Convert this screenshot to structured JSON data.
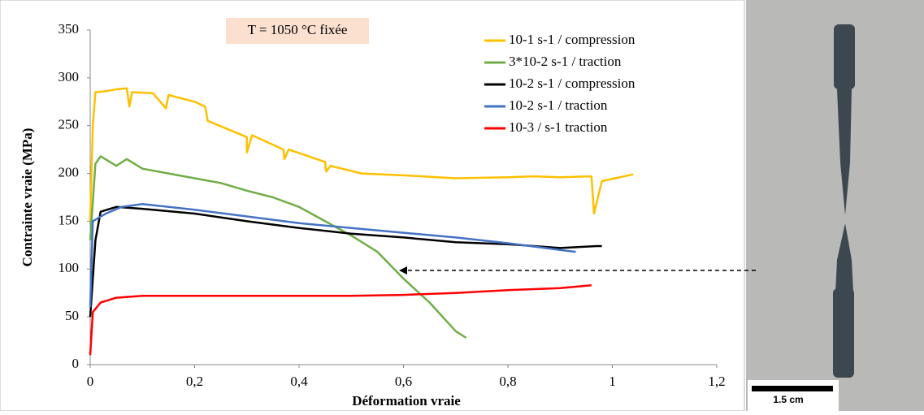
{
  "chart_data": {
    "type": "line",
    "annotation": "T = 1050 °C fixée",
    "x_label": "Déformation vraie",
    "y_label": "Contrainte vraie (MPa)",
    "scale_bar_label": "1.5 cm",
    "xlim": [
      0,
      1.2
    ],
    "ylim": [
      0,
      350
    ],
    "xticks": [
      0,
      {
        "value": 0.2,
        "label": "0,2"
      },
      {
        "value": 0.4,
        "label": "0,4"
      },
      {
        "value": 0.6,
        "label": "0,6"
      },
      {
        "value": 0.8,
        "label": "0,8"
      },
      1,
      {
        "value": 1.2,
        "label": "1,2"
      }
    ],
    "yticks": [
      0,
      50,
      100,
      150,
      200,
      250,
      300,
      350
    ],
    "series": [
      {
        "name": "10-1 s-1 / compression",
        "color": "#ffc000",
        "x": [
          0,
          0.005,
          0.01,
          0.03,
          0.05,
          0.07,
          0.075,
          0.08,
          0.12,
          0.145,
          0.15,
          0.2,
          0.22,
          0.225,
          0.3,
          0.3,
          0.31,
          0.37,
          0.372,
          0.38,
          0.45,
          0.452,
          0.46,
          0.52,
          0.6,
          0.7,
          0.8,
          0.85,
          0.9,
          0.96,
          0.965,
          0.98,
          1.04
        ],
        "values": [
          150,
          250,
          285,
          286,
          288,
          289,
          270,
          285,
          284,
          268,
          282,
          275,
          270,
          255,
          238,
          222,
          240,
          225,
          215,
          225,
          212,
          202,
          208,
          200,
          198,
          195,
          196,
          197,
          196,
          197,
          158,
          192,
          199
        ]
      },
      {
        "name": "3*10-2 s-1 / traction",
        "color": "#70ad47",
        "x": [
          0,
          0.01,
          0.02,
          0.05,
          0.07,
          0.1,
          0.15,
          0.2,
          0.25,
          0.3,
          0.35,
          0.4,
          0.45,
          0.5,
          0.55,
          0.6,
          0.65,
          0.7,
          0.72
        ],
        "values": [
          130,
          210,
          218,
          208,
          215,
          205,
          200,
          195,
          190,
          182,
          175,
          165,
          150,
          135,
          118,
          90,
          65,
          35,
          28
        ]
      },
      {
        "name": "10-2 s-1 / compression",
        "color": "#000000",
        "x": [
          0,
          0.01,
          0.02,
          0.05,
          0.1,
          0.2,
          0.3,
          0.4,
          0.5,
          0.6,
          0.7,
          0.8,
          0.9,
          0.97,
          0.98
        ],
        "values": [
          50,
          130,
          160,
          165,
          163,
          158,
          150,
          143,
          137,
          133,
          128,
          126,
          122,
          124,
          124
        ]
      },
      {
        "name": "10-2 s-1 / traction",
        "color": "#4472c4",
        "x": [
          0,
          0.005,
          0.03,
          0.06,
          0.1,
          0.2,
          0.3,
          0.4,
          0.5,
          0.6,
          0.7,
          0.8,
          0.9,
          0.93
        ],
        "values": [
          60,
          150,
          158,
          165,
          168,
          162,
          155,
          148,
          143,
          138,
          133,
          127,
          120,
          118
        ]
      },
      {
        "name": "10-3 / s-1 traction",
        "color": "#ff0000",
        "x": [
          0,
          0.005,
          0.02,
          0.05,
          0.1,
          0.2,
          0.3,
          0.4,
          0.5,
          0.6,
          0.7,
          0.8,
          0.9,
          0.96
        ],
        "values": [
          10,
          55,
          65,
          70,
          72,
          72,
          72,
          72,
          72,
          73,
          75,
          78,
          80,
          83
        ]
      }
    ]
  }
}
